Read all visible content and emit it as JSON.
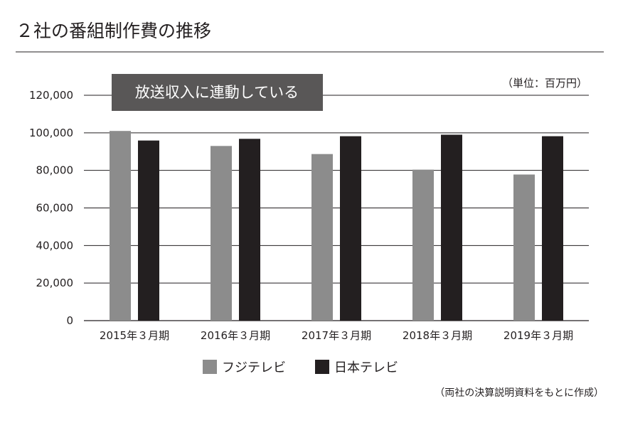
{
  "title": "２社の番組制作費の推移",
  "unit_note": "（単位：百万円）",
  "source_note": "（両社の決算説明資料をもとに作成）",
  "annotation": "放送収入に連動している",
  "colors": {
    "fuji": "#8c8c8c",
    "ntv": "#231f20",
    "annotation_bg": "#595757",
    "grid": "#231f20"
  },
  "chart_data": {
    "type": "bar",
    "title": "２社の番組制作費の推移",
    "categories": [
      "2015年３月期",
      "2016年３月期",
      "2017年３月期",
      "2018年３月期",
      "2019年３月期"
    ],
    "series": [
      {
        "name": "フジテレビ",
        "values": [
          101000,
          93000,
          88700,
          80400,
          77800
        ]
      },
      {
        "name": "日本テレビ",
        "values": [
          95900,
          96800,
          98200,
          99000,
          98200
        ]
      }
    ],
    "ylim": [
      0,
      120000
    ],
    "yticks": [
      0,
      20000,
      40000,
      60000,
      80000,
      100000,
      120000
    ],
    "ytick_labels": [
      "0",
      "20,000",
      "40,000",
      "60,000",
      "80,000",
      "100,000",
      "120,000"
    ],
    "grid": true,
    "legend_position": "bottom-center",
    "xlabel": "",
    "ylabel": ""
  }
}
